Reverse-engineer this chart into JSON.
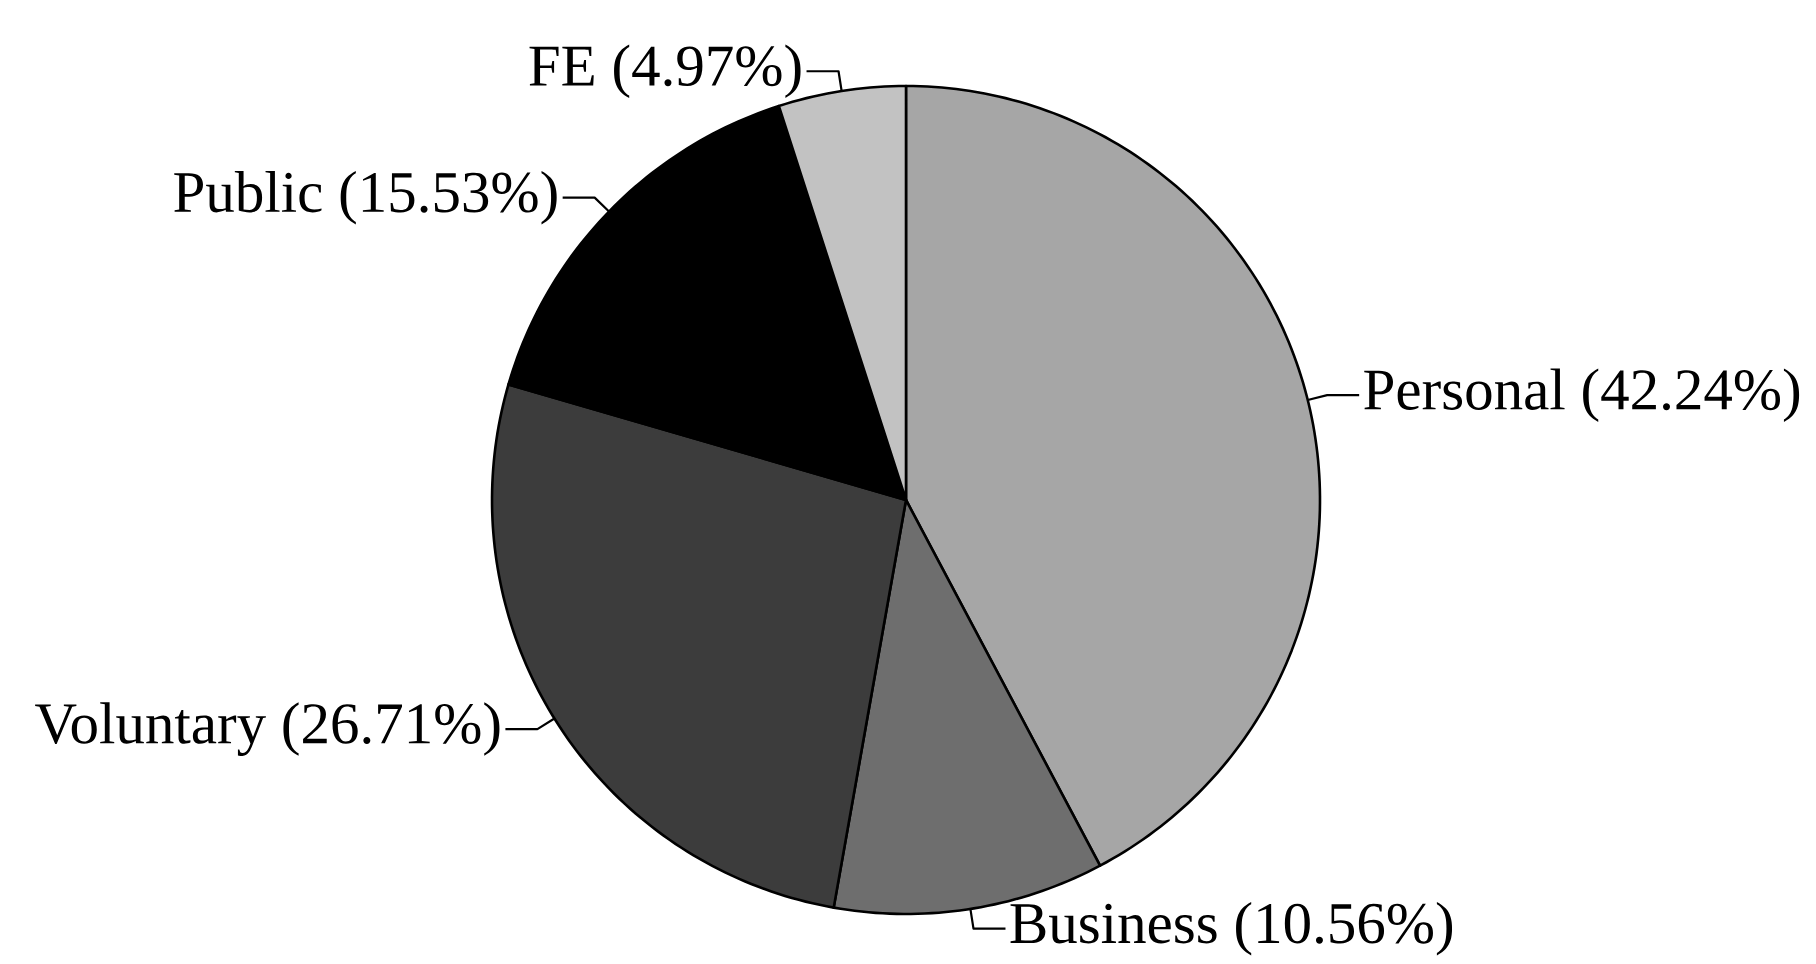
{
  "chart_data": {
    "type": "pie",
    "categories": [
      "Personal",
      "Business",
      "Voluntary",
      "Public",
      "FE"
    ],
    "values": [
      42.24,
      10.56,
      26.71,
      15.53,
      4.97
    ],
    "value_labels": [
      "(42.24%)",
      "(10.56%)",
      "(26.71%)",
      "(15.53%)",
      "(4.97%)"
    ],
    "colors": [
      "#a6a6a6",
      "#6e6e6e",
      "#3c3c3c",
      "#000000",
      "#c2c2c2"
    ]
  }
}
